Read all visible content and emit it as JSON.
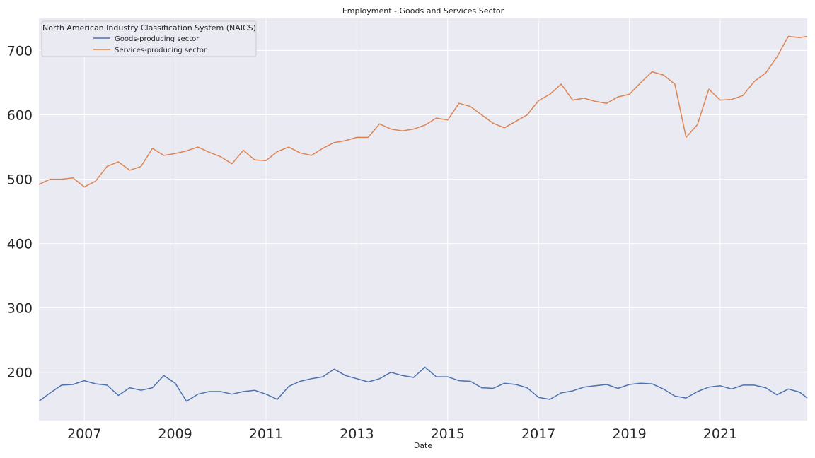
{
  "colors": {
    "background": "#eaeaf2",
    "grid": "#ffffff",
    "goods": "#4c72b0",
    "services": "#dd8452"
  },
  "chart_data": {
    "type": "line",
    "title": "Employment - Goods and Services Sector",
    "xlabel": "Date",
    "ylabel": "",
    "x_range": [
      "2006-01",
      "2022-12"
    ],
    "ylim": [
      125,
      750
    ],
    "x_ticks": [
      "2007",
      "2009",
      "2011",
      "2013",
      "2015",
      "2017",
      "2019",
      "2021"
    ],
    "y_ticks": [
      200,
      300,
      400,
      500,
      600,
      700
    ],
    "grid": true,
    "legend": {
      "title": "North American Industry Classification System (NAICS)",
      "placement": "top-left"
    },
    "series": [
      {
        "name": "Goods-producing sector",
        "color": "#4c72b0",
        "points": [
          [
            "2006-01",
            155
          ],
          [
            "2006-04",
            168
          ],
          [
            "2006-07",
            180
          ],
          [
            "2006-10",
            181
          ],
          [
            "2007-01",
            187
          ],
          [
            "2007-04",
            182
          ],
          [
            "2007-07",
            180
          ],
          [
            "2007-10",
            164
          ],
          [
            "2008-01",
            176
          ],
          [
            "2008-04",
            172
          ],
          [
            "2008-07",
            176
          ],
          [
            "2008-10",
            195
          ],
          [
            "2009-01",
            183
          ],
          [
            "2009-04",
            155
          ],
          [
            "2009-07",
            166
          ],
          [
            "2009-10",
            170
          ],
          [
            "2010-01",
            170
          ],
          [
            "2010-04",
            166
          ],
          [
            "2010-07",
            170
          ],
          [
            "2010-10",
            172
          ],
          [
            "2011-01",
            166
          ],
          [
            "2011-04",
            158
          ],
          [
            "2011-07",
            178
          ],
          [
            "2011-10",
            186
          ],
          [
            "2012-01",
            190
          ],
          [
            "2012-04",
            193
          ],
          [
            "2012-07",
            205
          ],
          [
            "2012-10",
            195
          ],
          [
            "2013-01",
            190
          ],
          [
            "2013-04",
            185
          ],
          [
            "2013-07",
            190
          ],
          [
            "2013-10",
            200
          ],
          [
            "2014-01",
            195
          ],
          [
            "2014-04",
            192
          ],
          [
            "2014-07",
            208
          ],
          [
            "2014-10",
            193
          ],
          [
            "2015-01",
            193
          ],
          [
            "2015-04",
            187
          ],
          [
            "2015-07",
            186
          ],
          [
            "2015-10",
            176
          ],
          [
            "2016-01",
            175
          ],
          [
            "2016-04",
            183
          ],
          [
            "2016-07",
            181
          ],
          [
            "2016-10",
            176
          ],
          [
            "2017-01",
            161
          ],
          [
            "2017-04",
            158
          ],
          [
            "2017-07",
            168
          ],
          [
            "2017-10",
            171
          ],
          [
            "2018-01",
            177
          ],
          [
            "2018-04",
            179
          ],
          [
            "2018-07",
            181
          ],
          [
            "2018-10",
            175
          ],
          [
            "2019-01",
            181
          ],
          [
            "2019-04",
            183
          ],
          [
            "2019-07",
            182
          ],
          [
            "2019-10",
            174
          ],
          [
            "2020-01",
            163
          ],
          [
            "2020-04",
            160
          ],
          [
            "2020-07",
            170
          ],
          [
            "2020-10",
            177
          ],
          [
            "2021-01",
            179
          ],
          [
            "2021-04",
            174
          ],
          [
            "2021-07",
            180
          ],
          [
            "2021-10",
            180
          ],
          [
            "2022-01",
            176
          ],
          [
            "2022-04",
            165
          ],
          [
            "2022-07",
            174
          ],
          [
            "2022-10",
            169
          ],
          [
            "2022-12",
            160
          ]
        ]
      },
      {
        "name": "Services-producing sector",
        "color": "#dd8452",
        "points": [
          [
            "2006-01",
            492
          ],
          [
            "2006-04",
            500
          ],
          [
            "2006-07",
            500
          ],
          [
            "2006-10",
            502
          ],
          [
            "2007-01",
            488
          ],
          [
            "2007-04",
            497
          ],
          [
            "2007-07",
            520
          ],
          [
            "2007-10",
            527
          ],
          [
            "2008-01",
            514
          ],
          [
            "2008-04",
            520
          ],
          [
            "2008-07",
            548
          ],
          [
            "2008-10",
            537
          ],
          [
            "2009-01",
            540
          ],
          [
            "2009-04",
            544
          ],
          [
            "2009-07",
            550
          ],
          [
            "2009-10",
            542
          ],
          [
            "2010-01",
            535
          ],
          [
            "2010-04",
            524
          ],
          [
            "2010-07",
            545
          ],
          [
            "2010-10",
            530
          ],
          [
            "2011-01",
            529
          ],
          [
            "2011-04",
            543
          ],
          [
            "2011-07",
            550
          ],
          [
            "2011-10",
            541
          ],
          [
            "2012-01",
            537
          ],
          [
            "2012-04",
            548
          ],
          [
            "2012-07",
            557
          ],
          [
            "2012-10",
            560
          ],
          [
            "2013-01",
            565
          ],
          [
            "2013-04",
            565
          ],
          [
            "2013-07",
            586
          ],
          [
            "2013-10",
            578
          ],
          [
            "2014-01",
            575
          ],
          [
            "2014-04",
            578
          ],
          [
            "2014-07",
            584
          ],
          [
            "2014-10",
            595
          ],
          [
            "2015-01",
            592
          ],
          [
            "2015-04",
            618
          ],
          [
            "2015-07",
            613
          ],
          [
            "2015-10",
            600
          ],
          [
            "2016-01",
            587
          ],
          [
            "2016-04",
            580
          ],
          [
            "2016-07",
            590
          ],
          [
            "2016-10",
            600
          ],
          [
            "2017-01",
            622
          ],
          [
            "2017-04",
            632
          ],
          [
            "2017-07",
            648
          ],
          [
            "2017-10",
            623
          ],
          [
            "2018-01",
            626
          ],
          [
            "2018-04",
            621
          ],
          [
            "2018-07",
            618
          ],
          [
            "2018-10",
            628
          ],
          [
            "2019-01",
            632
          ],
          [
            "2019-04",
            650
          ],
          [
            "2019-07",
            667
          ],
          [
            "2019-10",
            662
          ],
          [
            "2020-01",
            648
          ],
          [
            "2020-04",
            565
          ],
          [
            "2020-07",
            585
          ],
          [
            "2020-10",
            640
          ],
          [
            "2021-01",
            623
          ],
          [
            "2021-04",
            624
          ],
          [
            "2021-07",
            630
          ],
          [
            "2021-10",
            652
          ],
          [
            "2022-01",
            665
          ],
          [
            "2022-04",
            690
          ],
          [
            "2022-07",
            722
          ],
          [
            "2022-10",
            720
          ],
          [
            "2022-12",
            722
          ]
        ]
      }
    ]
  }
}
